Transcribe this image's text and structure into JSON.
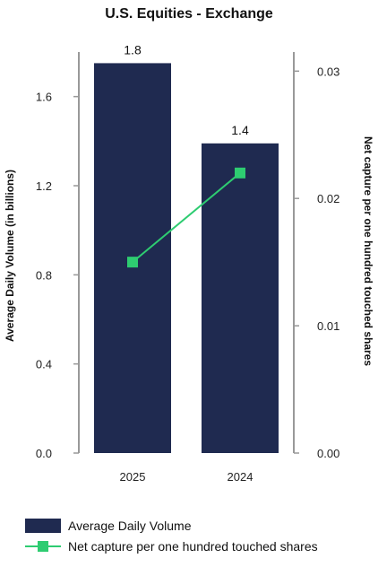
{
  "chart_data": {
    "type": "bar",
    "title": "U.S. Equities - Exchange",
    "categories": [
      "2025",
      "2024"
    ],
    "ylabel_left": "Average Daily Volume (in billions)",
    "ylabel_right": "Net capture per one hundred touched shares",
    "left_axis": {
      "min": 0,
      "max": 1.8,
      "ticks": [
        "0.0",
        "0.4",
        "0.8",
        "1.2",
        "1.6"
      ]
    },
    "right_axis": {
      "min": 0,
      "max": 0.0315,
      "ticks": [
        "0.00",
        "0.01",
        "0.02",
        "0.03"
      ]
    },
    "series": [
      {
        "name": "Average Daily Volume",
        "type": "bar",
        "axis": "left",
        "values": [
          1.75,
          1.39
        ],
        "data_labels": [
          "1.8",
          "1.4"
        ],
        "color": "#1f2a50"
      },
      {
        "name": "Net capture per one hundred touched shares",
        "type": "line",
        "axis": "right",
        "values": [
          0.015,
          0.022
        ],
        "color": "#2ecc71"
      }
    ],
    "legend_position": "bottom-left",
    "grid": false
  }
}
